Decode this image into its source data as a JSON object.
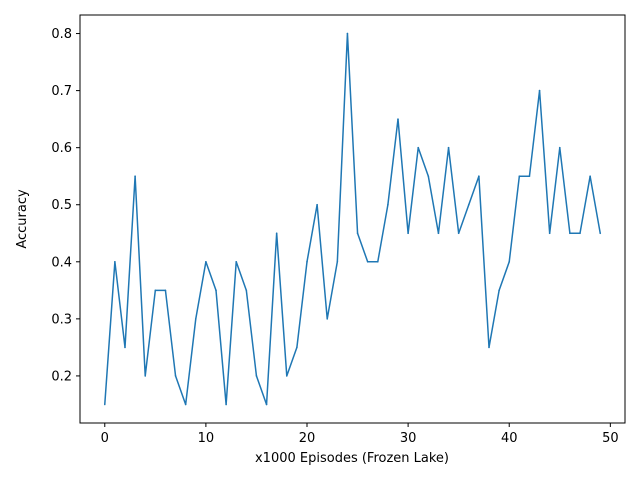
{
  "chart_data": {
    "type": "line",
    "title": "",
    "xlabel": "x1000 Episodes (Frozen Lake)",
    "ylabel": "Accuracy",
    "xlim": [
      -2.45,
      51.45
    ],
    "ylim": [
      0.1175,
      0.8325
    ],
    "x_ticks": [
      0,
      10,
      20,
      30,
      40,
      50
    ],
    "y_ticks": [
      0.2,
      0.3,
      0.4,
      0.5,
      0.6,
      0.7,
      0.8
    ],
    "x_tick_labels": [
      "0",
      "10",
      "20",
      "30",
      "40",
      "50"
    ],
    "y_tick_labels": [
      "0.2",
      "0.3",
      "0.4",
      "0.5",
      "0.6",
      "0.7",
      "0.8"
    ],
    "grid": false,
    "line_color": "#1f77b4",
    "series": [
      {
        "x": [
          0,
          1,
          2,
          3,
          4,
          5,
          6,
          7,
          8,
          9,
          10,
          11,
          12,
          13,
          14,
          15,
          16,
          17,
          18,
          19,
          20,
          21,
          22,
          23,
          24,
          25,
          26,
          27,
          28,
          29,
          30,
          31,
          32,
          33,
          34,
          35,
          36,
          37,
          38,
          39,
          40,
          41,
          42,
          43,
          44,
          45,
          46,
          47,
          48,
          49
        ],
        "values": [
          0.15,
          0.4,
          0.25,
          0.55,
          0.2,
          0.35,
          0.35,
          0.2,
          0.15,
          0.3,
          0.4,
          0.35,
          0.15,
          0.4,
          0.35,
          0.2,
          0.15,
          0.45,
          0.2,
          0.25,
          0.4,
          0.5,
          0.3,
          0.4,
          0.8,
          0.45,
          0.4,
          0.4,
          0.5,
          0.65,
          0.45,
          0.6,
          0.55,
          0.45,
          0.6,
          0.45,
          0.5,
          0.55,
          0.25,
          0.35,
          0.4,
          0.55,
          0.55,
          0.7,
          0.45,
          0.6,
          0.45,
          0.45,
          0.55,
          0.45
        ]
      }
    ]
  }
}
